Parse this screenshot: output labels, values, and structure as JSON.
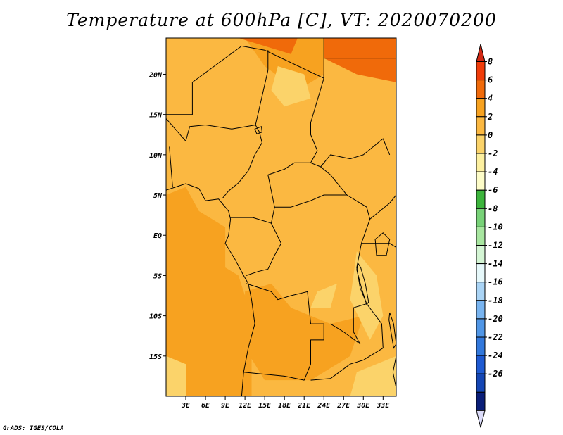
{
  "title": "Temperature at 600hPa [C], VT: 2020070200",
  "credit": "GrADS: IGES/COLA",
  "map": {
    "lon_range": [
      0,
      35
    ],
    "lat_range": [
      -20,
      24.5
    ],
    "lon_ticks": [
      {
        "value": 3,
        "label": "3E"
      },
      {
        "value": 6,
        "label": "6E"
      },
      {
        "value": 9,
        "label": "9E"
      },
      {
        "value": 12,
        "label": "12E"
      },
      {
        "value": 15,
        "label": "15E"
      },
      {
        "value": 18,
        "label": "18E"
      },
      {
        "value": 21,
        "label": "21E"
      },
      {
        "value": 24,
        "label": "24E"
      },
      {
        "value": 27,
        "label": "27E"
      },
      {
        "value": 30,
        "label": "30E"
      },
      {
        "value": 33,
        "label": "33E"
      }
    ],
    "lat_ticks": [
      {
        "value": 20,
        "label": "20N"
      },
      {
        "value": 15,
        "label": "15N"
      },
      {
        "value": 10,
        "label": "10N"
      },
      {
        "value": 5,
        "label": "5N"
      },
      {
        "value": 0,
        "label": "EQ"
      },
      {
        "value": -5,
        "label": "5S"
      },
      {
        "value": -10,
        "label": "10S"
      },
      {
        "value": -15,
        "label": "15S"
      }
    ],
    "background_color": "#fbb841",
    "regions": [
      {
        "name": "warm-ocean-west",
        "color": "#f7a220",
        "points": [
          [
            0,
            5
          ],
          [
            3,
            6
          ],
          [
            5,
            3
          ],
          [
            9,
            1
          ],
          [
            9,
            -4
          ],
          [
            11,
            -5
          ],
          [
            13,
            -10
          ],
          [
            13,
            -20
          ],
          [
            0,
            -20
          ]
        ]
      },
      {
        "name": "warm-north-central",
        "color": "#f7a220",
        "points": [
          [
            12,
            24.5
          ],
          [
            24,
            24.5
          ],
          [
            24,
            20
          ],
          [
            20,
            18
          ],
          [
            15,
            21
          ]
        ]
      },
      {
        "name": "hot-northeast",
        "color": "#f06a0a",
        "points": [
          [
            24,
            24.5
          ],
          [
            35,
            24.5
          ],
          [
            35,
            19
          ],
          [
            29,
            20
          ],
          [
            24,
            22
          ]
        ]
      },
      {
        "name": "hot-north-strip",
        "color": "#f06a0a",
        "points": [
          [
            11,
            24.5
          ],
          [
            20,
            24.5
          ],
          [
            19,
            22.5
          ],
          [
            15,
            23.5
          ]
        ]
      },
      {
        "name": "hot-south-zambia",
        "color": "#f06a0a",
        "points": [
          [
            19,
            -15
          ],
          [
            23,
            -12
          ],
          [
            27,
            -11
          ],
          [
            25,
            -14
          ],
          [
            21,
            -16
          ]
        ]
      },
      {
        "name": "warm-south-interior",
        "color": "#f7a220",
        "points": [
          [
            12,
            -7
          ],
          [
            16,
            -6
          ],
          [
            19,
            -9
          ],
          [
            25,
            -11
          ],
          [
            30,
            -10
          ],
          [
            28,
            -15
          ],
          [
            22,
            -18
          ],
          [
            15,
            -18
          ],
          [
            12,
            -14
          ]
        ]
      },
      {
        "name": "mild-east-lowlands",
        "color": "#fbd36a",
        "points": [
          [
            29,
            -2
          ],
          [
            32,
            -5
          ],
          [
            33,
            -10
          ],
          [
            31,
            -13
          ],
          [
            28,
            -8
          ]
        ]
      },
      {
        "name": "mild-southwest",
        "color": "#fbd36a",
        "points": [
          [
            0,
            -15
          ],
          [
            3,
            -16
          ],
          [
            3,
            -20
          ],
          [
            0,
            -20
          ]
        ]
      },
      {
        "name": "mild-southeast",
        "color": "#fbd36a",
        "points": [
          [
            29,
            -17
          ],
          [
            35,
            -15
          ],
          [
            35,
            -20
          ],
          [
            28,
            -20
          ]
        ]
      },
      {
        "name": "mild-congo-patch",
        "color": "#fbd36a",
        "points": [
          [
            23,
            -7
          ],
          [
            26,
            -6
          ],
          [
            25,
            -9
          ],
          [
            22,
            -9
          ]
        ]
      },
      {
        "name": "mild-sahel-patch",
        "color": "#fbd36a",
        "points": [
          [
            17,
            21
          ],
          [
            21,
            20
          ],
          [
            22,
            17
          ],
          [
            18,
            16
          ],
          [
            16,
            18
          ]
        ]
      }
    ],
    "borders": [
      {
        "name": "coastline-west-africa",
        "points": [
          [
            0,
            5.6
          ],
          [
            3,
            6.4
          ],
          [
            5,
            5.8
          ],
          [
            6,
            4.3
          ],
          [
            8,
            4.5
          ],
          [
            9.5,
            3
          ],
          [
            9.8,
            2
          ],
          [
            9.5,
            0
          ],
          [
            9,
            -1
          ],
          [
            10.5,
            -3
          ],
          [
            11.8,
            -5
          ],
          [
            12.5,
            -6
          ],
          [
            13,
            -8
          ],
          [
            13.5,
            -11
          ],
          [
            12.5,
            -14
          ],
          [
            11.8,
            -17
          ],
          [
            11.5,
            -20
          ]
        ]
      },
      {
        "name": "coastline-east-africa",
        "points": [
          [
            35,
            -15
          ],
          [
            34.5,
            -17
          ],
          [
            35,
            -19
          ]
        ]
      },
      {
        "name": "border-nigeria-north",
        "points": [
          [
            3,
            11.7
          ],
          [
            3.6,
            13.5
          ],
          [
            6,
            13.7
          ],
          [
            10,
            13.2
          ],
          [
            13.6,
            13.7
          ],
          [
            14.2,
            12.8
          ],
          [
            14.6,
            11.5
          ],
          [
            13.5,
            10
          ],
          [
            12.5,
            8
          ],
          [
            11,
            6.5
          ],
          [
            9.5,
            5.5
          ],
          [
            8.6,
            4.6
          ]
        ]
      },
      {
        "name": "border-niger-chad",
        "points": [
          [
            15.5,
            23
          ],
          [
            15.5,
            20.5
          ],
          [
            13.6,
            13.7
          ]
        ]
      },
      {
        "name": "border-chad-sudan",
        "points": [
          [
            24,
            20
          ],
          [
            24,
            19.5
          ],
          [
            22,
            14
          ],
          [
            22,
            12.5
          ],
          [
            23,
            10.5
          ],
          [
            22,
            9
          ]
        ]
      },
      {
        "name": "border-chad-car",
        "points": [
          [
            15.5,
            7.5
          ],
          [
            18,
            8.2
          ],
          [
            19.5,
            9
          ],
          [
            22,
            9
          ],
          [
            23.5,
            8.5
          ],
          [
            25,
            7.5
          ],
          [
            27.5,
            5
          ],
          [
            24,
            5
          ],
          [
            22,
            4.3
          ],
          [
            19,
            3.5
          ],
          [
            16.5,
            3.5
          ],
          [
            15.5,
            7.5
          ]
        ]
      },
      {
        "name": "border-libya-south",
        "points": [
          [
            11.5,
            23.5
          ],
          [
            15,
            23
          ],
          [
            24,
            19.5
          ],
          [
            24,
            24.5
          ]
        ]
      },
      {
        "name": "border-egypt-sudan",
        "points": [
          [
            24,
            22
          ],
          [
            35,
            22
          ]
        ]
      },
      {
        "name": "border-cameroon-gabon",
        "points": [
          [
            9.8,
            2.2
          ],
          [
            11.3,
            2.2
          ],
          [
            13.2,
            2.2
          ],
          [
            16,
            1.5
          ],
          [
            16.5,
            3.5
          ]
        ]
      },
      {
        "name": "border-congo-drc",
        "points": [
          [
            16,
            1.5
          ],
          [
            17.5,
            -1
          ],
          [
            16.5,
            -2.5
          ],
          [
            15.5,
            -4.2
          ],
          [
            14,
            -4.5
          ],
          [
            12.2,
            -5
          ]
        ]
      },
      {
        "name": "border-drc-angola",
        "points": [
          [
            12.2,
            -6
          ],
          [
            16,
            -7
          ],
          [
            17,
            -8
          ],
          [
            19,
            -7.5
          ],
          [
            21.5,
            -7
          ],
          [
            22,
            -11
          ],
          [
            24,
            -11
          ],
          [
            24,
            -13
          ]
        ]
      },
      {
        "name": "border-drc-east",
        "points": [
          [
            27.5,
            5
          ],
          [
            30.5,
            3.5
          ],
          [
            31,
            2
          ],
          [
            29.7,
            -1
          ],
          [
            29,
            -4
          ],
          [
            29.5,
            -6.5
          ],
          [
            30.5,
            -8.5
          ],
          [
            28.5,
            -9
          ],
          [
            28.5,
            -12
          ],
          [
            29.5,
            -13.5
          ],
          [
            27,
            -12
          ],
          [
            25,
            -11
          ]
        ]
      },
      {
        "name": "border-angola-zambia-namibia",
        "points": [
          [
            11.8,
            -17
          ],
          [
            18,
            -17.5
          ],
          [
            21,
            -18
          ],
          [
            22,
            -16
          ],
          [
            22,
            -13
          ],
          [
            24,
            -13
          ]
        ]
      },
      {
        "name": "border-zambia-south",
        "points": [
          [
            22,
            -18
          ],
          [
            25,
            -17.8
          ],
          [
            28,
            -16
          ],
          [
            30,
            -15.5
          ],
          [
            33,
            -14
          ],
          [
            32.8,
            -11
          ],
          [
            30.5,
            -8.5
          ]
        ]
      },
      {
        "name": "border-south-sudan",
        "points": [
          [
            23.5,
            8.5
          ],
          [
            25,
            10
          ],
          [
            28,
            9.5
          ],
          [
            30,
            10
          ],
          [
            33,
            12
          ],
          [
            34,
            10
          ]
        ]
      },
      {
        "name": "border-uganda-kenya",
        "points": [
          [
            31,
            2
          ],
          [
            34,
            4
          ],
          [
            35,
            5
          ]
        ]
      },
      {
        "name": "border-tanzania",
        "points": [
          [
            29.7,
            -1
          ],
          [
            34,
            -1
          ],
          [
            35,
            -1.5
          ]
        ]
      },
      {
        "name": "border-ghana-togo",
        "points": [
          [
            1,
            6
          ],
          [
            0.5,
            11
          ]
        ]
      },
      {
        "name": "border-burkina-niger",
        "points": [
          [
            0,
            14.5
          ],
          [
            3,
            11.7
          ]
        ]
      },
      {
        "name": "border-mali-niger",
        "points": [
          [
            0,
            15
          ],
          [
            4,
            15
          ],
          [
            4,
            19
          ],
          [
            11.5,
            23.5
          ]
        ]
      }
    ],
    "lakes": [
      {
        "name": "lake-victoria",
        "points": [
          [
            31.8,
            -0.5
          ],
          [
            33,
            0.3
          ],
          [
            34,
            -0.5
          ],
          [
            33.5,
            -2.5
          ],
          [
            32,
            -2.5
          ]
        ]
      },
      {
        "name": "lake-tanganyika",
        "points": [
          [
            29.2,
            -3.5
          ],
          [
            29.6,
            -4
          ],
          [
            30.3,
            -6
          ],
          [
            30.8,
            -8.3
          ],
          [
            30.5,
            -8.6
          ],
          [
            29.7,
            -6.5
          ],
          [
            29,
            -4.3
          ]
        ]
      },
      {
        "name": "lake-malawi",
        "points": [
          [
            34,
            -9.6
          ],
          [
            34.6,
            -11
          ],
          [
            35,
            -13.5
          ],
          [
            34.6,
            -14
          ],
          [
            34.2,
            -12
          ],
          [
            33.9,
            -10.5
          ]
        ]
      },
      {
        "name": "lake-chad",
        "points": [
          [
            13.5,
            13.2
          ],
          [
            14.5,
            13.5
          ],
          [
            14.6,
            12.8
          ],
          [
            13.8,
            12.6
          ]
        ]
      }
    ]
  },
  "colorbar": {
    "levels": [
      "8",
      "6",
      "4",
      "2",
      "0",
      "-2",
      "-4",
      "-6",
      "-8",
      "-10",
      "-12",
      "-14",
      "-16",
      "-18",
      "-20",
      "-22",
      "-24",
      "-26"
    ],
    "colors": [
      "#f03c0a",
      "#f06a0a",
      "#f7a220",
      "#fbb841",
      "#fbd36a",
      "#fdf0a0",
      "#fdfcc8",
      "#3cb43c",
      "#78d278",
      "#a8e6a0",
      "#d4f5d4",
      "#e6f8fa",
      "#aad4f5",
      "#78b4f0",
      "#5096e6",
      "#3278dc",
      "#1e5ad2",
      "#1446b4",
      "#0a1e78"
    ],
    "top_color": "#d22814",
    "bottom_color": "#dcdcfa"
  }
}
